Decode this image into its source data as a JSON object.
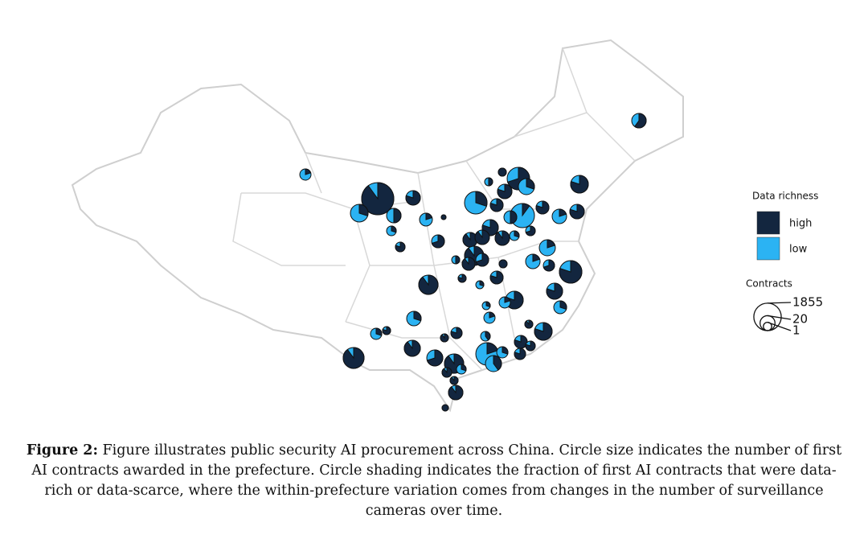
{
  "figure": {
    "legend": {
      "title": "Data richness",
      "items": [
        {
          "label": "high",
          "color": "#13263f"
        },
        {
          "label": "low",
          "color": "#2bb3f3"
        }
      ]
    },
    "size_legend": {
      "title": "Contracts",
      "values": [
        1855,
        20,
        1
      ]
    },
    "caption": {
      "label": "Figure 2:",
      "text": "Figure illustrates public security AI procurement across China. Circle size indicates the number of first AI contracts awarded in the prefecture. Circle shading indicates the fraction of first AI contracts that were data-rich or data-scarce, where the within-prefecture variation comes from changes in the number of surveillance cameras over time."
    }
  }
}
